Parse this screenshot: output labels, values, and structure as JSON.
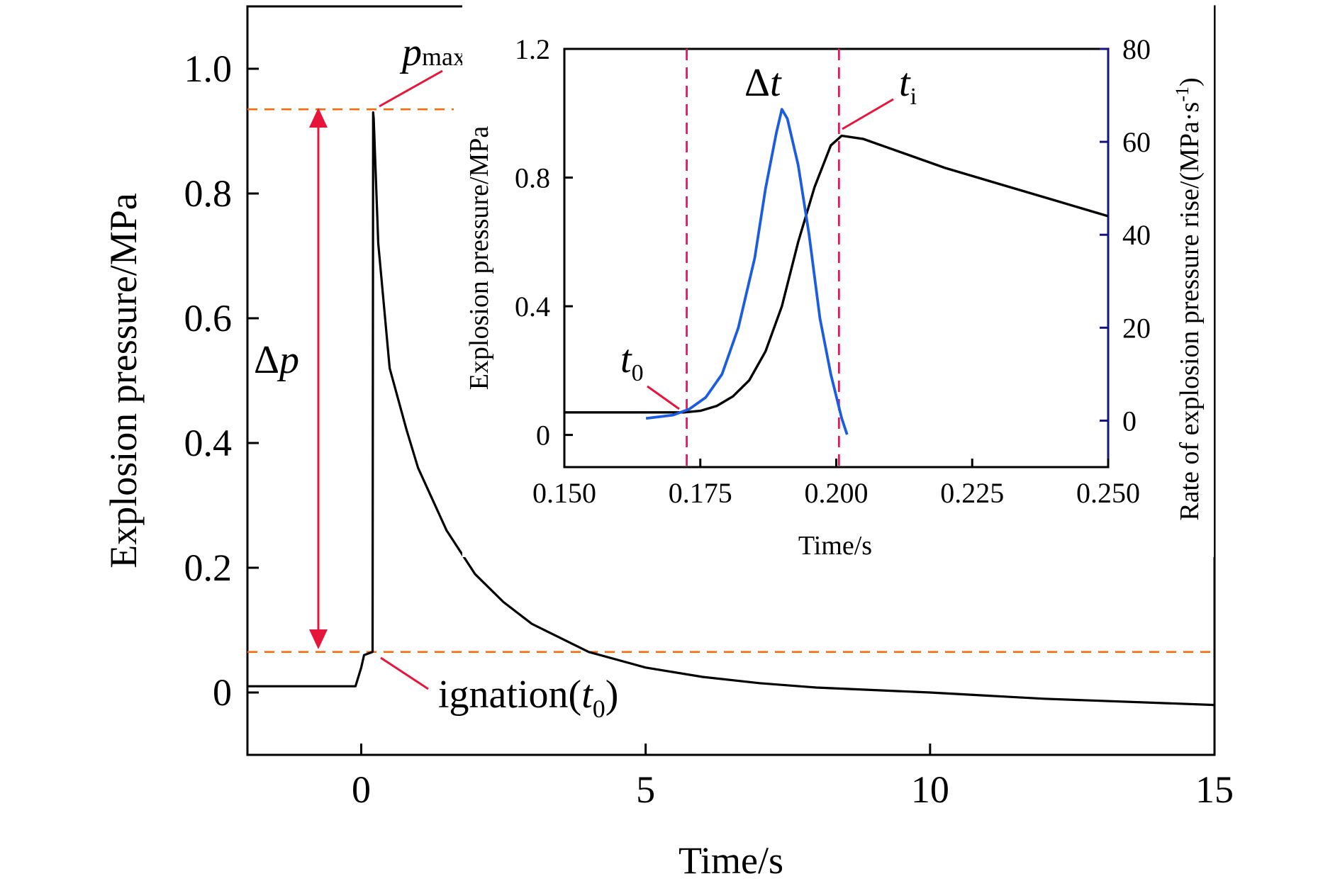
{
  "chart_data": [
    {
      "type": "line",
      "xlabel": "Time/s",
      "ylabel": "Explosion pressure/MPa",
      "xlim": [
        -2,
        15
      ],
      "ylim": [
        -0.1,
        1.1
      ],
      "x_ticks": [
        "0",
        "5",
        "10",
        "15"
      ],
      "y_ticks": [
        "0",
        "0.2",
        "0.4",
        "0.6",
        "0.8",
        "1.0"
      ],
      "series": [
        {
          "color": "#000000",
          "x": [
            -2,
            -0.1,
            0.0,
            0.05,
            0.2,
            0.21,
            0.22,
            0.3,
            0.5,
            0.8,
            1.0,
            1.5,
            2.0,
            2.5,
            3.0,
            4.0,
            5.0,
            6.0,
            7.0,
            8.0,
            10.0,
            12.0,
            15.0
          ],
          "y": [
            0.01,
            0.01,
            0.04,
            0.06,
            0.065,
            0.93,
            0.92,
            0.72,
            0.52,
            0.42,
            0.36,
            0.26,
            0.19,
            0.145,
            0.11,
            0.065,
            0.04,
            0.025,
            0.015,
            0.008,
            0.0,
            -0.01,
            -0.02
          ]
        }
      ],
      "reference_lines": [
        {
          "orientation": "horizontal",
          "y": 0.935,
          "color": "#ff6600",
          "style": "dashed"
        },
        {
          "orientation": "horizontal",
          "y": 0.065,
          "color": "#ff6600",
          "style": "dashed"
        }
      ],
      "annotations": {
        "pmax": {
          "base": "p",
          "sub": "max"
        },
        "delta_p": {
          "sym": "Δ",
          "var": "p"
        },
        "ignition": {
          "text": "ignation(",
          "var": "t",
          "sub": "0",
          "close": ")"
        }
      }
    },
    {
      "type": "line",
      "xlabel": "Time/s",
      "ylabel": "Explosion pressure/MPa",
      "y2label": "Rate of explosion pressure rise/(MPa·s",
      "y2label_sup": "-1",
      "y2label_close": ")",
      "xlim": [
        0.15,
        0.25
      ],
      "ylim": [
        -0.1,
        1.2
      ],
      "y2lim": [
        -10,
        80
      ],
      "x_ticks": [
        "0.150",
        "0.175",
        "0.200",
        "0.225",
        "0.250"
      ],
      "y_ticks": [
        "0",
        "0.4",
        "0.8",
        "1.2"
      ],
      "y2_ticks": [
        "0",
        "20",
        "40",
        "60",
        "80"
      ],
      "series": [
        {
          "axis": "left",
          "color": "#000000",
          "x": [
            0.15,
            0.165,
            0.172,
            0.175,
            0.178,
            0.181,
            0.184,
            0.187,
            0.19,
            0.193,
            0.196,
            0.199,
            0.201,
            0.205,
            0.21,
            0.22,
            0.23,
            0.24,
            0.25
          ],
          "y": [
            0.07,
            0.07,
            0.07,
            0.075,
            0.09,
            0.12,
            0.17,
            0.26,
            0.4,
            0.6,
            0.77,
            0.9,
            0.93,
            0.92,
            0.89,
            0.83,
            0.78,
            0.73,
            0.68
          ]
        },
        {
          "axis": "right",
          "color": "#1c5ce0",
          "x": [
            0.165,
            0.17,
            0.173,
            0.176,
            0.179,
            0.182,
            0.185,
            0.187,
            0.189,
            0.19,
            0.191,
            0.193,
            0.195,
            0.197,
            0.199,
            0.201,
            0.202
          ],
          "y": [
            0.5,
            1.2,
            2.5,
            5,
            10,
            20,
            35,
            50,
            62,
            67,
            65,
            55,
            40,
            22,
            10,
            0.5,
            -3
          ]
        }
      ],
      "reference_lines": [
        {
          "orientation": "vertical",
          "x": 0.1725,
          "color": "#e8175d",
          "style": "dashed"
        },
        {
          "orientation": "vertical",
          "x": 0.2005,
          "color": "#e8175d",
          "style": "dashed"
        }
      ],
      "annotations": {
        "t0": {
          "var": "t",
          "sub": "0"
        },
        "delta_t": {
          "sym": "Δ",
          "var": "t"
        },
        "ti": {
          "var": "t",
          "sub": "i"
        }
      }
    }
  ]
}
